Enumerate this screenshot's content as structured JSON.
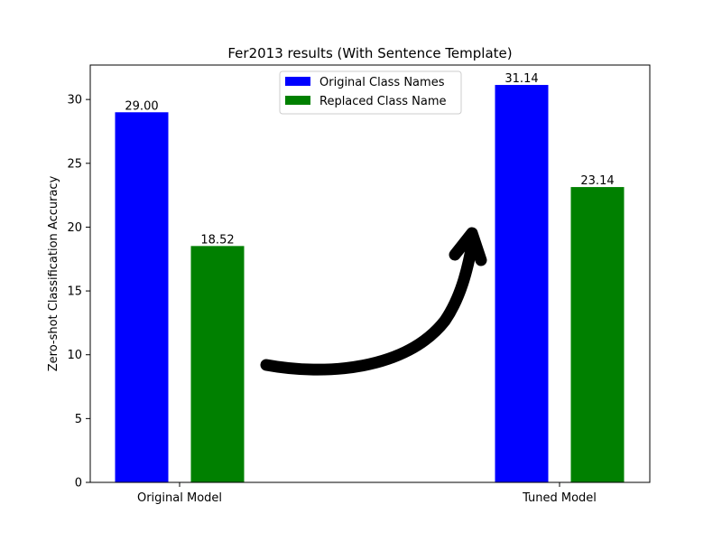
{
  "chart_data": {
    "type": "bar",
    "title": "Fer2013 results (With Sentence Template)",
    "xlabel": "",
    "ylabel": "Zero-shot Classification Accuracy",
    "categories": [
      "Original Model",
      "Tuned Model"
    ],
    "series": [
      {
        "name": "Original Class Names",
        "color": "#0000ff",
        "values": [
          29.0,
          31.14
        ],
        "labels": [
          "29.00",
          "31.14"
        ]
      },
      {
        "name": "Replaced Class Name",
        "color": "#008000",
        "values": [
          18.52,
          23.14
        ],
        "labels": [
          "18.52",
          "23.14"
        ]
      }
    ],
    "ylim": [
      0,
      32.7
    ],
    "yticks": [
      "0",
      "5",
      "10",
      "15",
      "20",
      "25",
      "30"
    ],
    "grid": false,
    "legend": "top-center",
    "annotation": "curved-arrow from Original Model to Tuned Model"
  }
}
